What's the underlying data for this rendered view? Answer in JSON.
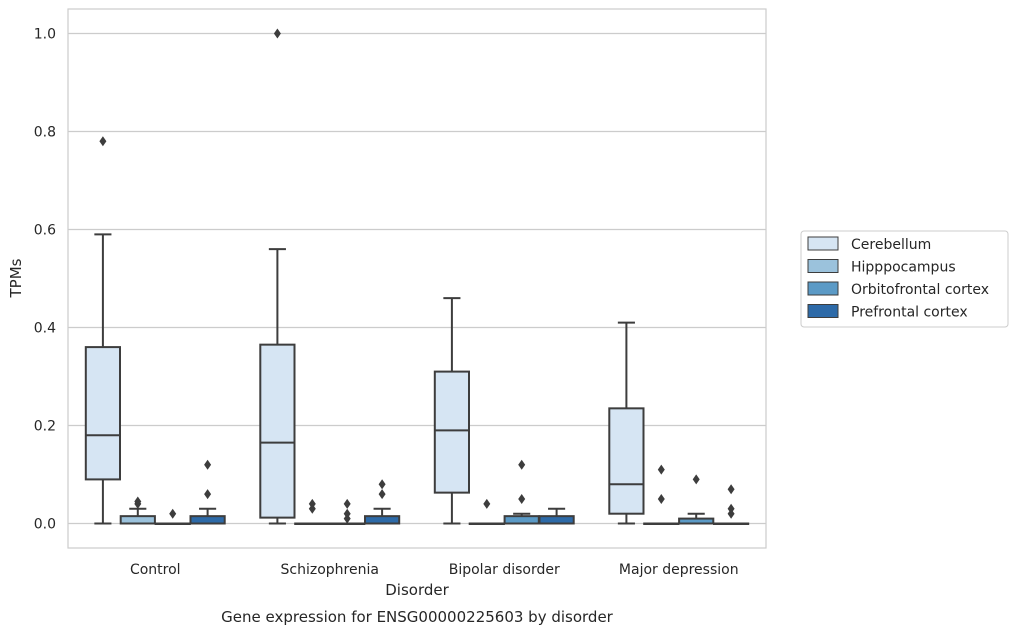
{
  "chart_data": {
    "type": "box",
    "caption": "Gene expression for ENSG00000225603 by disorder",
    "xlabel": "Disorder",
    "ylabel": "TPMs",
    "ylim": [
      -0.05,
      1.05
    ],
    "yticks": [
      0.0,
      0.2,
      0.4,
      0.6,
      0.8,
      1.0
    ],
    "ytick_labels": [
      "0.0",
      "0.2",
      "0.4",
      "0.6",
      "0.8",
      "1.0"
    ],
    "grid": true,
    "legend_position": "right",
    "categories": [
      "Control",
      "Schizophrenia",
      "Bipolar disorder",
      "Major depression"
    ],
    "series": [
      {
        "name": "Cerebellum",
        "color": "#d6e5f3",
        "boxes": [
          {
            "whisker_low": 0.0,
            "q1": 0.09,
            "median": 0.18,
            "q3": 0.36,
            "whisker_high": 0.59,
            "outliers": [
              0.78
            ]
          },
          {
            "whisker_low": 0.0,
            "q1": 0.012,
            "median": 0.165,
            "q3": 0.365,
            "whisker_high": 0.56,
            "outliers": [
              1.0
            ]
          },
          {
            "whisker_low": 0.0,
            "q1": 0.063,
            "median": 0.19,
            "q3": 0.31,
            "whisker_high": 0.46,
            "outliers": []
          },
          {
            "whisker_low": 0.0,
            "q1": 0.02,
            "median": 0.08,
            "q3": 0.235,
            "whisker_high": 0.41,
            "outliers": []
          }
        ]
      },
      {
        "name": "Hipppocampus",
        "color": "#9bc2dc",
        "boxes": [
          {
            "whisker_low": 0.0,
            "q1": 0.0,
            "median": 0.0,
            "q3": 0.015,
            "whisker_high": 0.03,
            "outliers": [
              0.04,
              0.045
            ]
          },
          {
            "whisker_low": 0.0,
            "q1": 0.0,
            "median": 0.0,
            "q3": 0.0,
            "whisker_high": 0.0,
            "outliers": [
              0.03,
              0.04
            ]
          },
          {
            "whisker_low": 0.0,
            "q1": 0.0,
            "median": 0.0,
            "q3": 0.0,
            "whisker_high": 0.0,
            "outliers": [
              0.04
            ]
          },
          {
            "whisker_low": 0.0,
            "q1": 0.0,
            "median": 0.0,
            "q3": 0.0,
            "whisker_high": 0.0,
            "outliers": [
              0.05,
              0.11
            ]
          }
        ]
      },
      {
        "name": "Orbitofrontal cortex",
        "color": "#5b9ac6",
        "boxes": [
          {
            "whisker_low": 0.0,
            "q1": 0.0,
            "median": 0.0,
            "q3": 0.0,
            "whisker_high": 0.0,
            "outliers": [
              0.02
            ]
          },
          {
            "whisker_low": 0.0,
            "q1": 0.0,
            "median": 0.0,
            "q3": 0.0,
            "whisker_high": 0.0,
            "outliers": [
              0.01,
              0.02,
              0.04
            ]
          },
          {
            "whisker_low": 0.0,
            "q1": 0.0,
            "median": 0.0,
            "q3": 0.015,
            "whisker_high": 0.02,
            "outliers": [
              0.05,
              0.12
            ]
          },
          {
            "whisker_low": 0.0,
            "q1": 0.0,
            "median": 0.0,
            "q3": 0.01,
            "whisker_high": 0.02,
            "outliers": [
              0.09
            ]
          }
        ]
      },
      {
        "name": "Prefrontal cortex",
        "color": "#2d6aa8",
        "boxes": [
          {
            "whisker_low": 0.0,
            "q1": 0.0,
            "median": 0.0,
            "q3": 0.015,
            "whisker_high": 0.03,
            "outliers": [
              0.06,
              0.12
            ]
          },
          {
            "whisker_low": 0.0,
            "q1": 0.0,
            "median": 0.0,
            "q3": 0.015,
            "whisker_high": 0.03,
            "outliers": [
              0.06,
              0.08
            ]
          },
          {
            "whisker_low": 0.0,
            "q1": 0.0,
            "median": 0.0,
            "q3": 0.015,
            "whisker_high": 0.03,
            "outliers": []
          },
          {
            "whisker_low": 0.0,
            "q1": 0.0,
            "median": 0.0,
            "q3": 0.0,
            "whisker_high": 0.0,
            "outliers": [
              0.02,
              0.03,
              0.07
            ]
          }
        ]
      }
    ]
  }
}
